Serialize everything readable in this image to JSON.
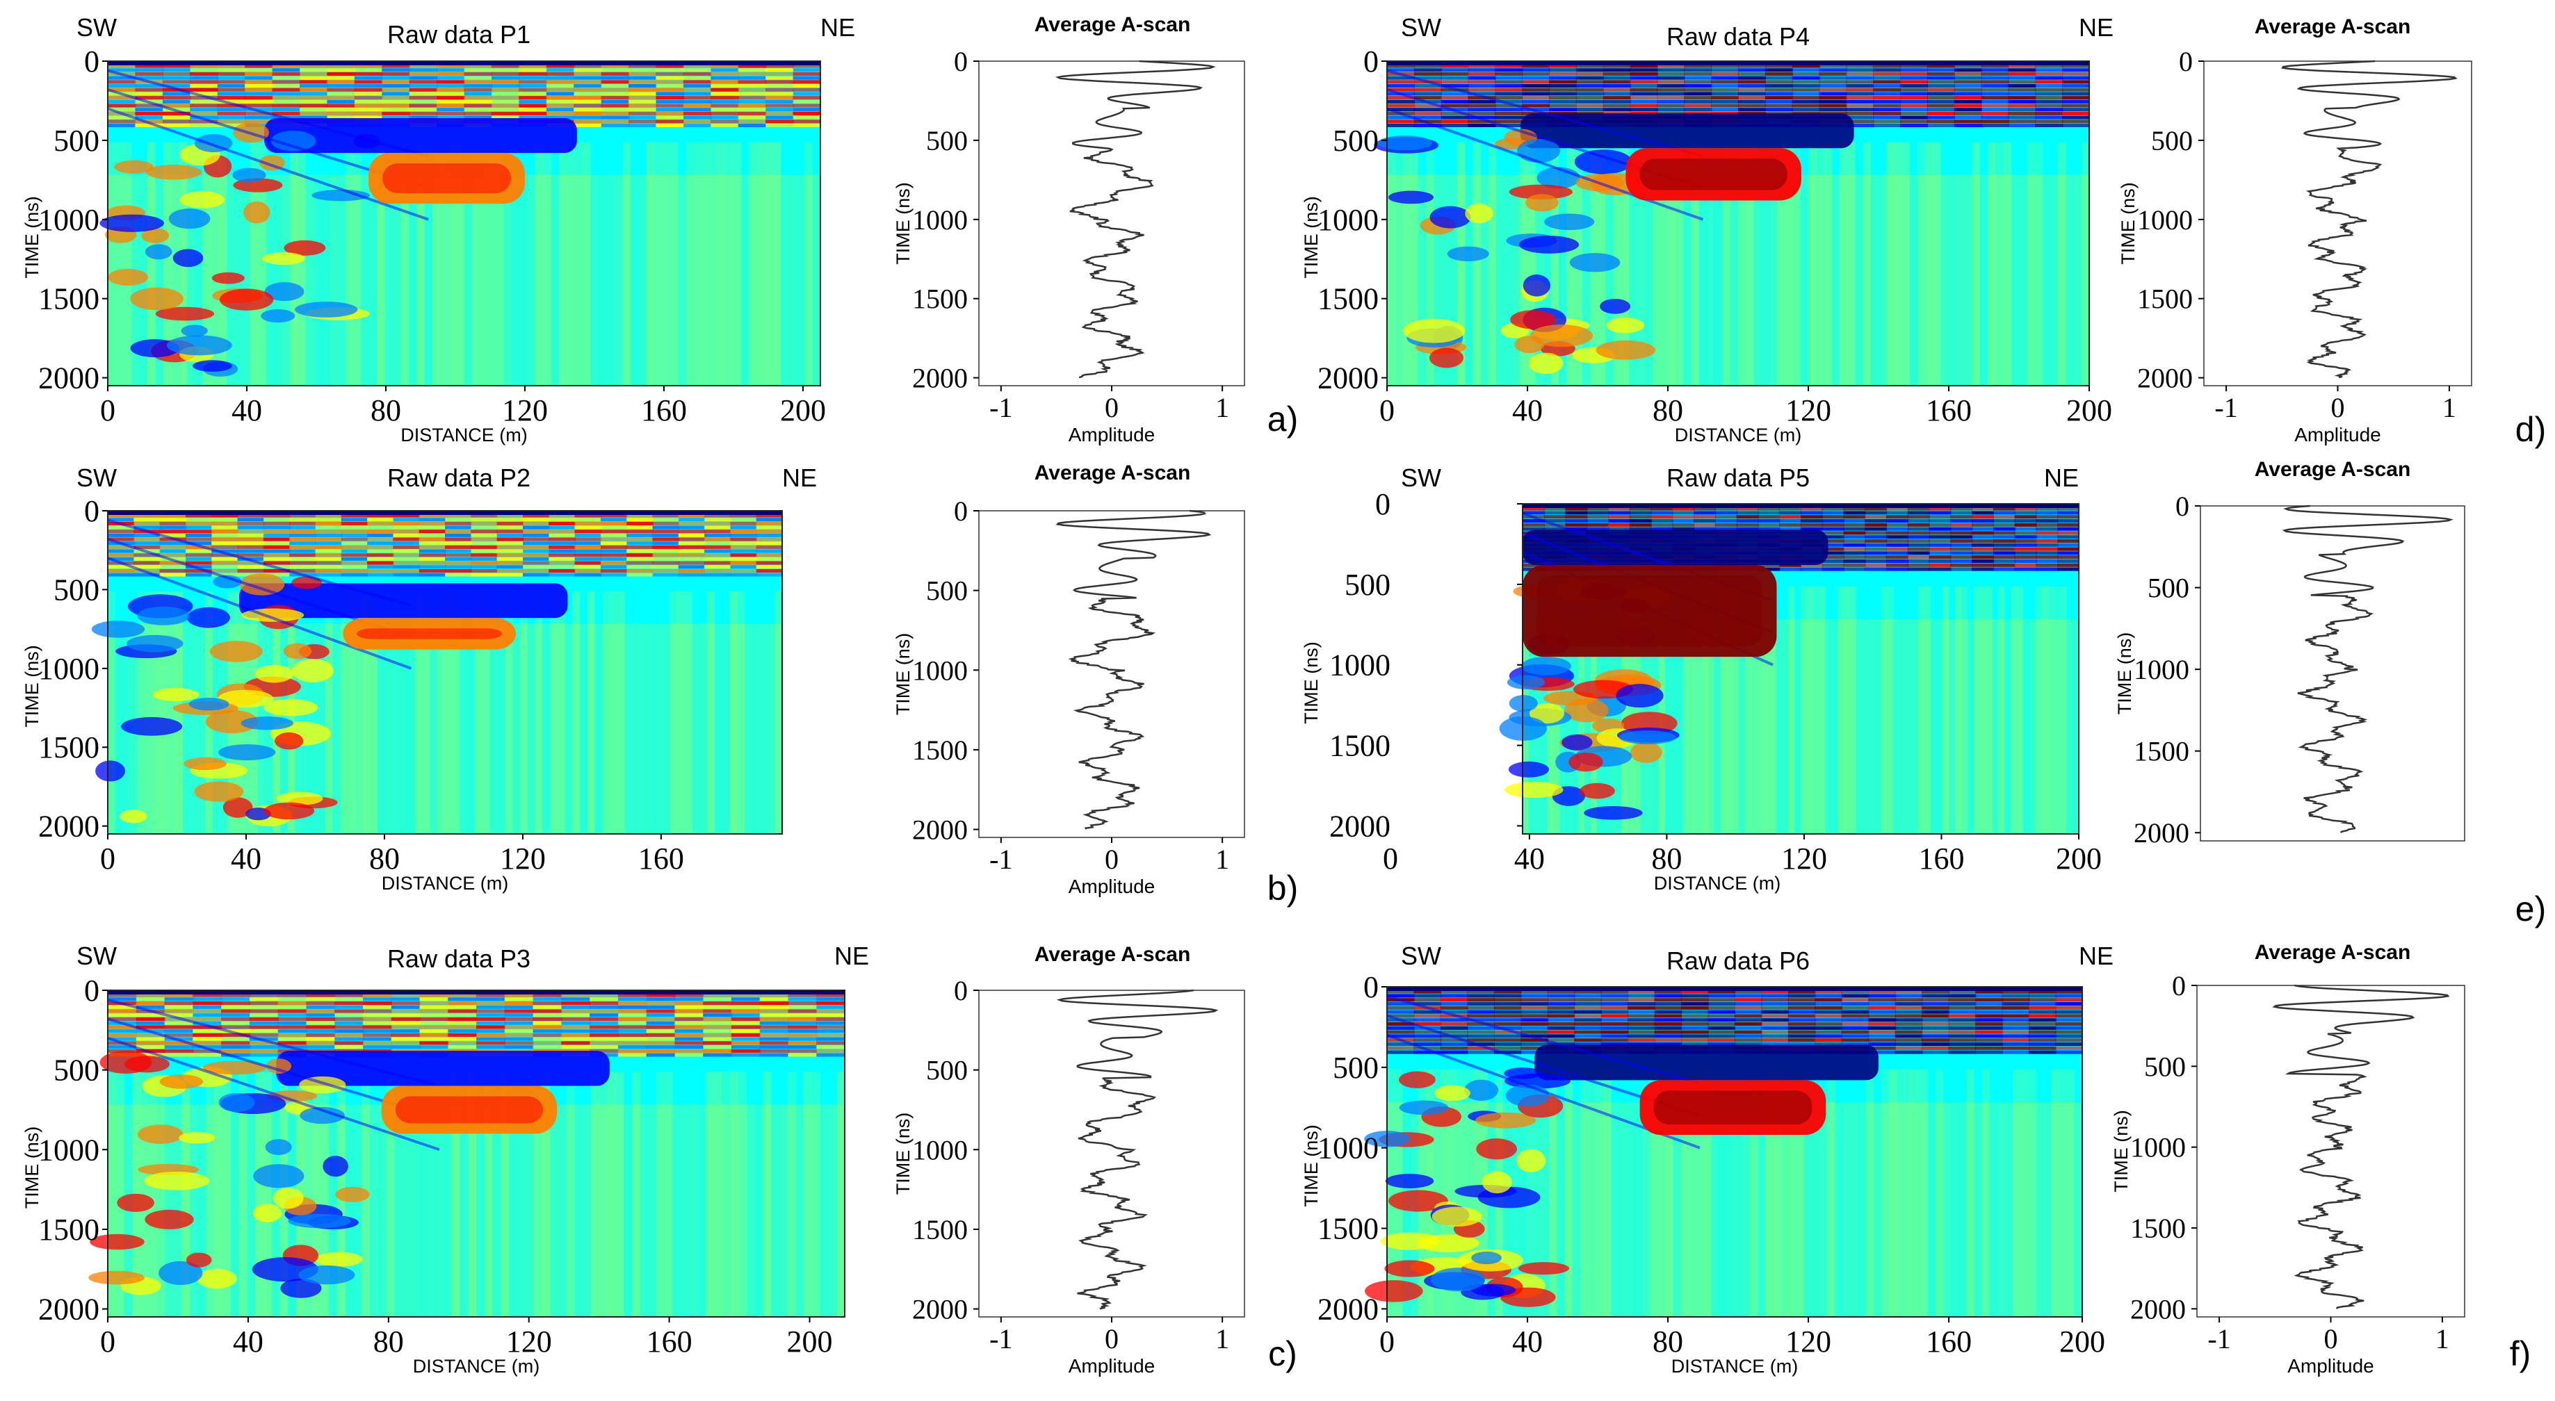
{
  "colors": {
    "jet": [
      "#00007f",
      "#0000ff",
      "#007fff",
      "#00ffff",
      "#7fff7f",
      "#ffff00",
      "#ff7f00",
      "#ff0000",
      "#7f0000"
    ],
    "background": "#7fd8c8",
    "trace": "#333333",
    "frame": "#222222"
  },
  "figure": {
    "units_distance": "DISTANCE (m)",
    "units_time": "TIME (ns)",
    "amplitude_label": "Amplitude",
    "dir_left": "SW",
    "dir_right": "NE"
  },
  "chart_data": [
    {
      "type": "heatmap",
      "title": "Raw data P1",
      "xlabel": "DISTANCE (m)",
      "ylabel": "TIME (ns)",
      "xlim": [
        0,
        205
      ],
      "ylim": [
        2050,
        0
      ],
      "xticks": [
        "0",
        "40",
        "80",
        "120",
        "160",
        "200"
      ],
      "yticks": [
        "0",
        "500",
        "1000",
        "1500",
        "2000"
      ],
      "direction_left": "SW",
      "direction_right": "NE",
      "hyperbola_zone_end_m": 75,
      "anomaly": {
        "x_start": 75,
        "x_end": 120,
        "t_top": 580,
        "t_bottom": 900,
        "color_level": 6
      }
    },
    {
      "type": "line",
      "title": "Average A-scan",
      "xlabel": "Amplitude",
      "ylabel": "TIME (ns)",
      "xlim": [
        -1.2,
        1.2
      ],
      "ylim": [
        2050,
        0
      ],
      "xticks": [
        "-1",
        "0",
        "1"
      ],
      "yticks": [
        "0",
        "500",
        "1000",
        "1500",
        "2000"
      ],
      "panel_label": "a)"
    },
    {
      "type": "heatmap",
      "title": "Raw data P2",
      "xlabel": "DISTANCE (m)",
      "ylabel": "TIME (ns)",
      "xlim": [
        0,
        195
      ],
      "ylim": [
        2050,
        0
      ],
      "xticks": [
        "0",
        "40",
        "80",
        "120",
        "160"
      ],
      "yticks": [
        "0",
        "500",
        "1000",
        "1500",
        "2000"
      ],
      "direction_left": "SW",
      "direction_right": "NE",
      "hyperbola_zone_end_m": 60,
      "anomaly": {
        "x_start": 68,
        "x_end": 118,
        "t_top": 680,
        "t_bottom": 880,
        "color_level": 6
      }
    },
    {
      "type": "line",
      "title": "Average A-scan",
      "xlabel": "Amplitude",
      "ylabel": "TIME (ns)",
      "xlim": [
        -1.2,
        1.2
      ],
      "ylim": [
        2050,
        0
      ],
      "xticks": [
        "-1",
        "0",
        "1"
      ],
      "yticks": [
        "0",
        "500",
        "1000",
        "1500",
        "2000"
      ],
      "panel_label": "b)"
    },
    {
      "type": "heatmap",
      "title": "Raw data P3",
      "xlabel": "DISTANCE (m)",
      "ylabel": "TIME (ns)",
      "xlim": [
        0,
        210
      ],
      "ylim": [
        2050,
        0
      ],
      "xticks": [
        "0",
        "40",
        "80",
        "120",
        "160",
        "200"
      ],
      "yticks": [
        "0",
        "500",
        "1000",
        "1500",
        "2000"
      ],
      "direction_left": "SW",
      "direction_right": "NE",
      "hyperbola_zone_end_m": 70,
      "anomaly": {
        "x_start": 78,
        "x_end": 128,
        "t_top": 600,
        "t_bottom": 900,
        "color_level": 6
      }
    },
    {
      "type": "line",
      "title": "Average A-scan",
      "xlabel": "Amplitude",
      "ylabel": "TIME (ns)",
      "xlim": [
        -1.2,
        1.2
      ],
      "ylim": [
        2050,
        0
      ],
      "xticks": [
        "-1",
        "0",
        "1"
      ],
      "yticks": [
        "0",
        "500",
        "1000",
        "1500",
        "2000"
      ],
      "panel_label": "c)"
    },
    {
      "type": "heatmap",
      "title": "Raw data P4",
      "xlabel": "DISTANCE (m)",
      "ylabel": "TIME (ns)",
      "xlim": [
        0,
        200
      ],
      "ylim": [
        2050,
        0
      ],
      "xticks": [
        "0",
        "40",
        "80",
        "120",
        "160",
        "200"
      ],
      "yticks": [
        "0",
        "500",
        "1000",
        "1500",
        "2000"
      ],
      "direction_left": "SW",
      "direction_right": "NE",
      "hyperbola_zone_end_m": 68,
      "anomaly": {
        "x_start": 68,
        "x_end": 118,
        "t_top": 550,
        "t_bottom": 880,
        "color_level": 7
      }
    },
    {
      "type": "line",
      "title": "Average A-scan",
      "xlabel": "Amplitude",
      "ylabel": "TIME (ns)",
      "xlim": [
        -1.2,
        1.2
      ],
      "ylim": [
        2050,
        0
      ],
      "xticks": [
        "-1",
        "0",
        "1"
      ],
      "yticks": [
        "0",
        "500",
        "1000",
        "1500",
        "2000"
      ],
      "panel_label": "d)"
    },
    {
      "type": "heatmap",
      "title": "Raw data P5",
      "xlabel": "DISTANCE (m)",
      "ylabel": "TIME (ns)",
      "xlim": [
        38,
        200
      ],
      "ylim": [
        2050,
        0
      ],
      "xticks": [
        "40",
        "80",
        "120",
        "160",
        "200"
      ],
      "yticks": [
        "0",
        "500",
        "1000",
        "1500",
        "2000"
      ],
      "outer_x_origin_label": "0",
      "direction_left": "SW",
      "direction_right": "NE",
      "hyperbola_zone_end_m": 75,
      "anomaly": {
        "x_start": 38,
        "x_end": 112,
        "t_top": 380,
        "t_bottom": 950,
        "color_level": 8
      }
    },
    {
      "type": "line",
      "title": "Average A-scan",
      "xlabel": "Amplitude",
      "ylabel": "TIME (ns)",
      "xlim": [
        -1.2,
        1.2
      ],
      "ylim": [
        2050,
        0
      ],
      "xticks": [],
      "yticks": [
        "0",
        "500",
        "1000",
        "1500",
        "2000"
      ],
      "panel_label": "e)"
    },
    {
      "type": "heatmap",
      "title": "Raw data P6",
      "xlabel": "DISTANCE (m)",
      "ylabel": "TIME (ns)",
      "xlim": [
        0,
        198
      ],
      "ylim": [
        2050,
        0
      ],
      "xticks": [
        "0",
        "40",
        "80",
        "120",
        "160",
        "200"
      ],
      "yticks": [
        "0",
        "500",
        "1000",
        "1500",
        "2000"
      ],
      "direction_left": "SW",
      "direction_right": "NE",
      "hyperbola_zone_end_m": 45,
      "anomaly": {
        "x_start": 72,
        "x_end": 125,
        "t_top": 580,
        "t_bottom": 920,
        "color_level": 7
      }
    },
    {
      "type": "line",
      "title": "Average A-scan",
      "xlabel": "Amplitude",
      "ylabel": "TIME (ns)",
      "xlim": [
        -1.2,
        1.2
      ],
      "ylim": [
        2050,
        0
      ],
      "xticks": [
        "-1",
        "0",
        "1"
      ],
      "yticks": [
        "0",
        "500",
        "1000",
        "1500",
        "2000"
      ],
      "panel_label": "f)"
    }
  ]
}
